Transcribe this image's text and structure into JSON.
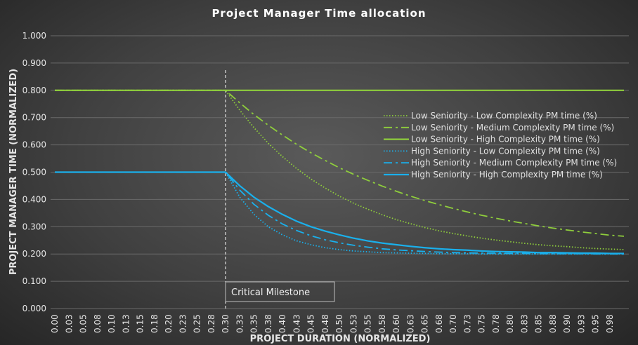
{
  "chart_data": {
    "type": "line",
    "title": "Project Manager Time allocation",
    "xlabel": "PROJECT DURATION (NORMALIZED)",
    "ylabel": "PROJECT MANAGER TIME (NORMALIZED)",
    "xlim": [
      0,
      1.0
    ],
    "ylim": [
      0,
      1.0
    ],
    "grid": true,
    "legend_position": "right",
    "yticklabels": [
      "0.000",
      "0.100",
      "0.200",
      "0.300",
      "0.400",
      "0.500",
      "0.600",
      "0.700",
      "0.800",
      "0.900",
      "1.000"
    ],
    "xticklabels": [
      "0.00",
      "0.03",
      "0.05",
      "0.08",
      "0.10",
      "0.13",
      "0.15",
      "0.18",
      "0.20",
      "0.23",
      "0.25",
      "0.28",
      "0.30",
      "0.33",
      "0.35",
      "0.38",
      "0.40",
      "0.43",
      "0.45",
      "0.48",
      "0.50",
      "0.53",
      "0.55",
      "0.58",
      "0.60",
      "0.63",
      "0.65",
      "0.68",
      "0.70",
      "0.73",
      "0.75",
      "0.78",
      "0.80",
      "0.83",
      "0.85",
      "0.88",
      "0.90",
      "0.93",
      "0.95",
      "0.98"
    ],
    "x": [
      0,
      0.3,
      0.325,
      0.35,
      0.375,
      0.4,
      0.425,
      0.45,
      0.475,
      0.5,
      0.525,
      0.55,
      0.575,
      0.6,
      0.625,
      0.65,
      0.675,
      0.7,
      0.725,
      0.75,
      0.775,
      0.8,
      0.825,
      0.85,
      0.875,
      0.9,
      0.925,
      0.95,
      0.975,
      1.0
    ],
    "series": [
      {
        "name": "Low Seniority - Low Complexity PM time (%)",
        "color": "#8fce3c",
        "style": "dotted",
        "values": [
          0.8,
          0.8,
          0.727,
          0.663,
          0.606,
          0.557,
          0.513,
          0.475,
          0.442,
          0.412,
          0.386,
          0.364,
          0.344,
          0.326,
          0.311,
          0.297,
          0.285,
          0.275,
          0.266,
          0.258,
          0.251,
          0.245,
          0.239,
          0.234,
          0.23,
          0.227,
          0.223,
          0.22,
          0.218,
          0.216
        ]
      },
      {
        "name": "Low Seniority - Medium Complexity PM time (%)",
        "color": "#8fce3c",
        "style": "dashdot",
        "values": [
          0.8,
          0.8,
          0.754,
          0.711,
          0.672,
          0.636,
          0.602,
          0.571,
          0.543,
          0.516,
          0.492,
          0.47,
          0.449,
          0.43,
          0.412,
          0.396,
          0.381,
          0.367,
          0.354,
          0.342,
          0.331,
          0.321,
          0.312,
          0.303,
          0.295,
          0.288,
          0.281,
          0.275,
          0.269,
          0.265
        ]
      },
      {
        "name": "Low Seniority - High Complexity PM time (%)",
        "color": "#8fce3c",
        "style": "solid",
        "values": [
          0.8,
          0.8,
          0.8,
          0.8,
          0.8,
          0.8,
          0.8,
          0.8,
          0.8,
          0.8,
          0.8,
          0.8,
          0.8,
          0.8,
          0.8,
          0.8,
          0.8,
          0.8,
          0.8,
          0.8,
          0.8,
          0.8,
          0.8,
          0.8,
          0.8,
          0.8,
          0.8,
          0.8,
          0.8,
          0.8
        ]
      },
      {
        "name": "High Seniority - Low Complexity PM time (%)",
        "color": "#1ab0ec",
        "style": "dotted",
        "values": [
          0.5,
          0.5,
          0.408,
          0.345,
          0.3,
          0.27,
          0.248,
          0.234,
          0.223,
          0.216,
          0.211,
          0.208,
          0.205,
          0.204,
          0.203,
          0.202,
          0.201,
          0.201,
          0.201,
          0.2,
          0.2,
          0.2,
          0.2,
          0.2,
          0.2,
          0.2,
          0.2,
          0.2,
          0.2,
          0.2
        ]
      },
      {
        "name": "High Seniority - Medium Complexity PM time (%)",
        "color": "#1ab0ec",
        "style": "dashdot",
        "values": [
          0.5,
          0.5,
          0.434,
          0.382,
          0.342,
          0.31,
          0.286,
          0.267,
          0.252,
          0.241,
          0.232,
          0.225,
          0.219,
          0.215,
          0.212,
          0.209,
          0.207,
          0.205,
          0.204,
          0.203,
          0.203,
          0.202,
          0.202,
          0.201,
          0.201,
          0.201,
          0.201,
          0.2,
          0.2,
          0.2
        ]
      },
      {
        "name": "High Seniority - High Complexity PM time (%)",
        "color": "#1ab0ec",
        "style": "solid",
        "values": [
          0.5,
          0.5,
          0.45,
          0.408,
          0.374,
          0.345,
          0.32,
          0.3,
          0.284,
          0.27,
          0.258,
          0.248,
          0.24,
          0.234,
          0.228,
          0.223,
          0.219,
          0.216,
          0.214,
          0.211,
          0.209,
          0.208,
          0.207,
          0.205,
          0.205,
          0.204,
          0.203,
          0.203,
          0.202,
          0.202
        ]
      }
    ],
    "annotations": [
      {
        "text": "Critical Milestone",
        "x": 0.3
      }
    ]
  }
}
